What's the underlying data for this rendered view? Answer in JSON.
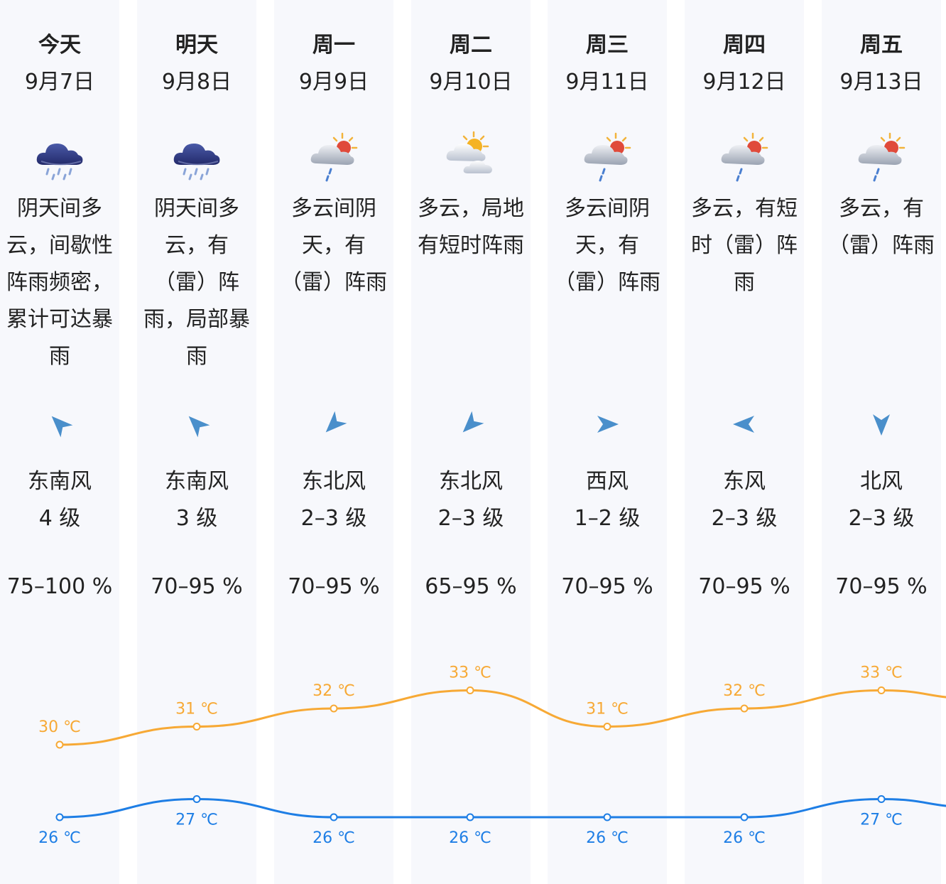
{
  "colors": {
    "column_bg": "#f7f8fc",
    "high_line": "#f7a935",
    "low_line": "#1e7ee5",
    "arrow": "#4a8fcb"
  },
  "days": [
    {
      "weekday": "今天",
      "date": "9月7日",
      "icon": "rain-heavy-cloud-icon",
      "description": "阴天间多云，间歇性阵雨频密，累计可达暴雨",
      "wind_direction": "东南风",
      "wind_icon": "arrow-northwest-icon",
      "wind_level": "4 级",
      "humidity": "75–100 %",
      "high": "30 ℃",
      "low": "26 ℃"
    },
    {
      "weekday": "明天",
      "date": "9月8日",
      "icon": "rain-heavy-cloud-icon",
      "description": "阴天间多云，有（雷）阵雨，局部暴雨",
      "wind_direction": "东南风",
      "wind_icon": "arrow-northwest-icon",
      "wind_level": "3 级",
      "humidity": "70–95 %",
      "high": "31 ℃",
      "low": "27 ℃"
    },
    {
      "weekday": "周一",
      "date": "9月9日",
      "icon": "cloudy-sun-shower-icon",
      "description": "多云间阴天，有（雷）阵雨",
      "wind_direction": "东北风",
      "wind_icon": "arrow-southwest-icon",
      "wind_level": "2–3 级",
      "humidity": "70–95 %",
      "high": "32 ℃",
      "low": "26 ℃"
    },
    {
      "weekday": "周二",
      "date": "9月10日",
      "icon": "partly-cloudy-sun-icon",
      "description": "多云，局地有短时阵雨",
      "wind_direction": "东北风",
      "wind_icon": "arrow-southwest-icon",
      "wind_level": "2–3 级",
      "humidity": "65–95 %",
      "high": "33 ℃",
      "low": "26 ℃"
    },
    {
      "weekday": "周三",
      "date": "9月11日",
      "icon": "cloudy-sun-shower-icon",
      "description": "多云间阴天，有（雷）阵雨",
      "wind_direction": "西风",
      "wind_icon": "arrow-east-icon",
      "wind_level": "1–2 级",
      "humidity": "70–95 %",
      "high": "31 ℃",
      "low": "26 ℃"
    },
    {
      "weekday": "周四",
      "date": "9月12日",
      "icon": "cloudy-sun-shower-icon",
      "description": "多云，有短时（雷）阵雨",
      "wind_direction": "东风",
      "wind_icon": "arrow-west-icon",
      "wind_level": "2–3 级",
      "humidity": "70–95 %",
      "high": "32 ℃",
      "low": "26 ℃"
    },
    {
      "weekday": "周五",
      "date": "9月13日",
      "icon": "cloudy-sun-shower-icon",
      "description": "多云，有（雷）阵雨",
      "wind_direction": "北风",
      "wind_icon": "arrow-south-icon",
      "wind_level": "2–3 级",
      "humidity": "70–95 %",
      "high": "33 ℃",
      "low": "27 ℃"
    }
  ],
  "chart_data": {
    "type": "line",
    "categories": [
      "今天",
      "明天",
      "周一",
      "周二",
      "周三",
      "周四",
      "周五"
    ],
    "series": [
      {
        "values": [
          30,
          31,
          32,
          33,
          31,
          32,
          33
        ]
      },
      {
        "values": [
          26,
          27,
          26,
          26,
          26,
          26,
          27
        ]
      }
    ]
  }
}
